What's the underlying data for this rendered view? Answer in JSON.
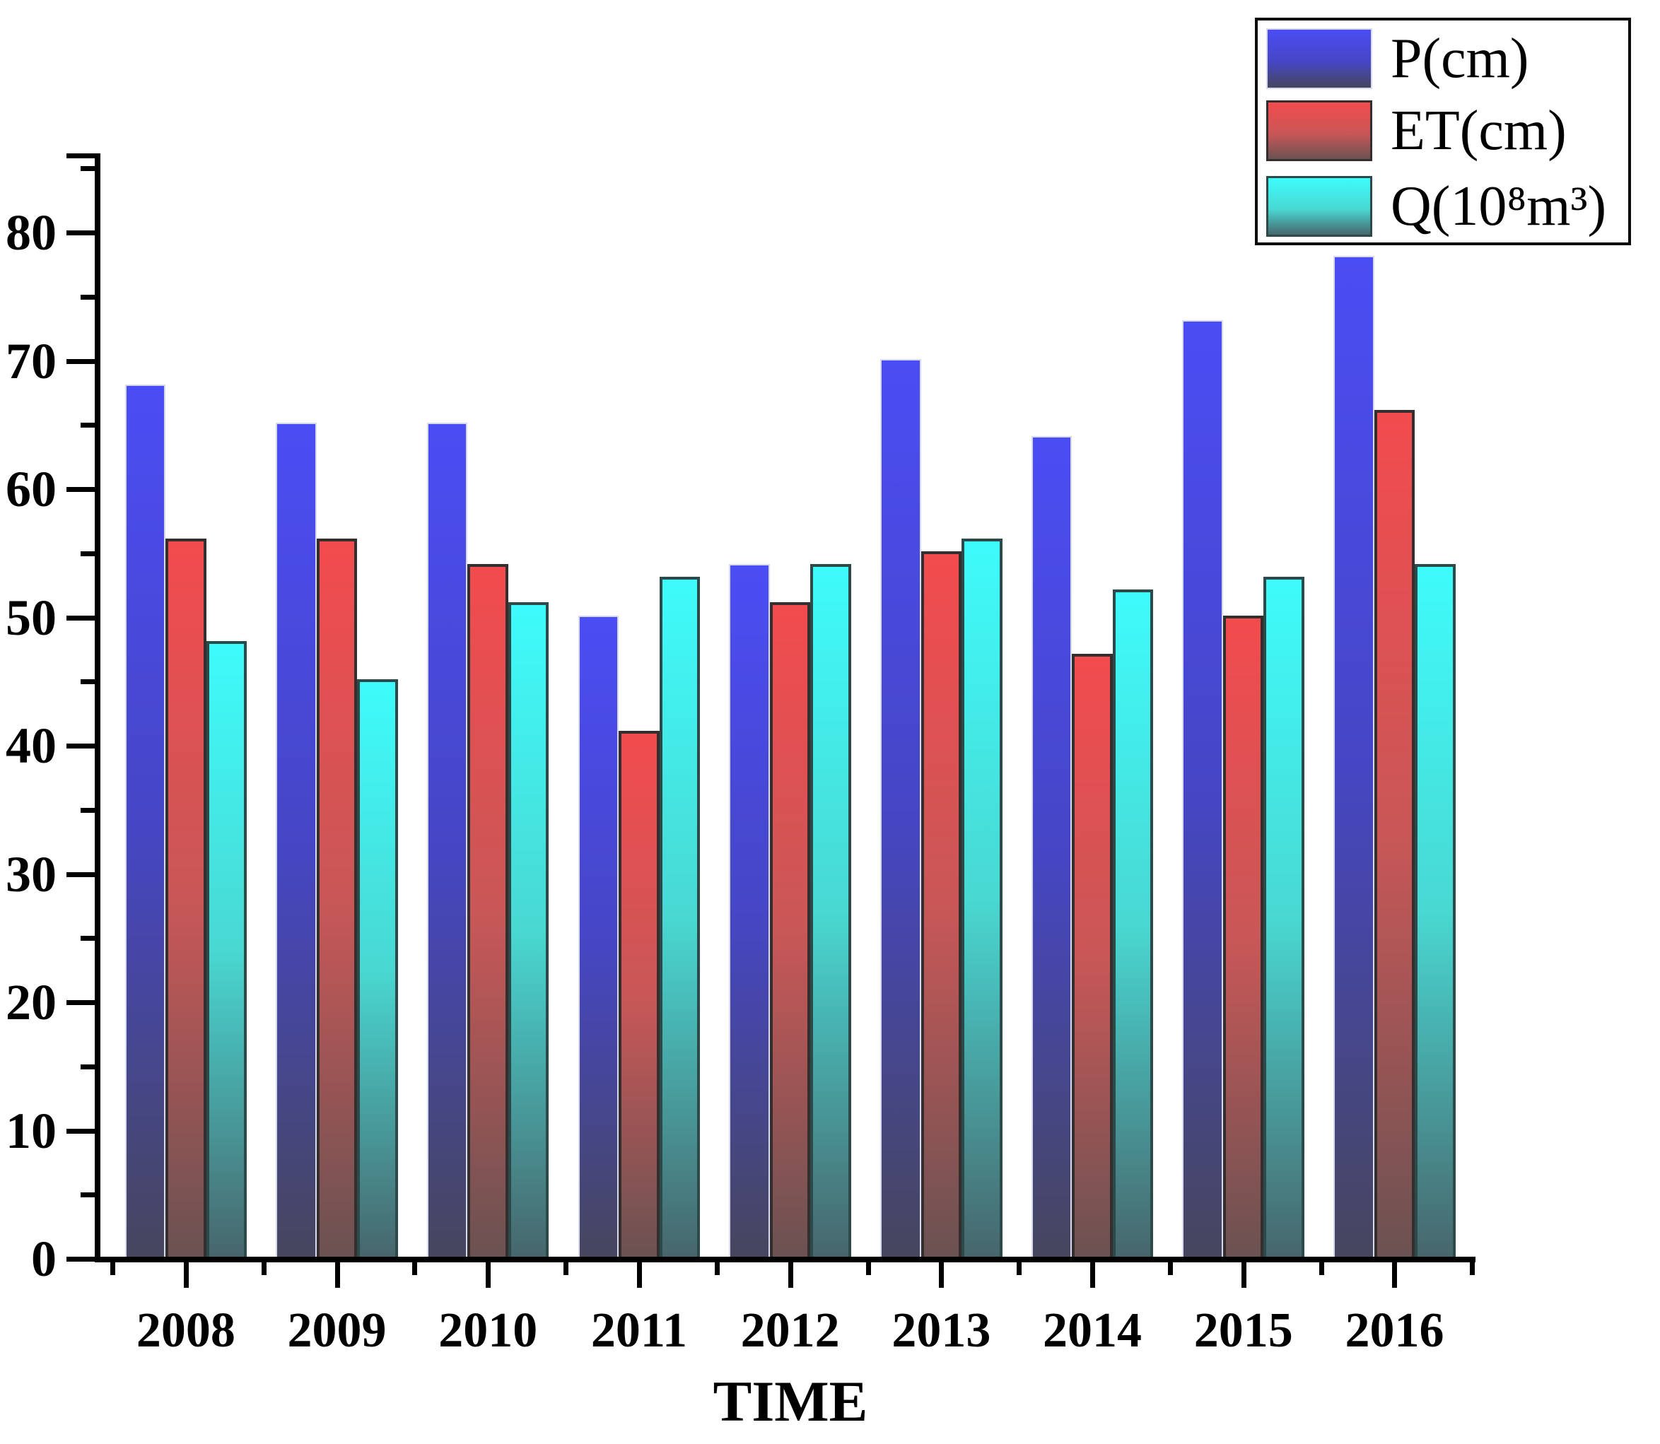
{
  "chart_data": {
    "type": "bar",
    "title": "",
    "xlabel": "TIME",
    "ylabel": "",
    "categories": [
      "2008",
      "2009",
      "2010",
      "2011",
      "2012",
      "2013",
      "2014",
      "2015",
      "2016"
    ],
    "series": [
      {
        "name": "P(cm)",
        "values": [
          68,
          65,
          65,
          50,
          54,
          70,
          64,
          73,
          78
        ],
        "color_top": "#4b4df4",
        "color_mid": "#4646c6",
        "color_bottom": "#46465e",
        "border_color": "#d8daf0"
      },
      {
        "name": "ET(cm)",
        "values": [
          56,
          56,
          54,
          41,
          51,
          55,
          47,
          50,
          66
        ],
        "color_top": "#f24b4e",
        "color_mid": "#c95757",
        "color_bottom": "#6b5252",
        "border_color": "#342e2e"
      },
      {
        "name": "Q(10⁸m³)",
        "values": [
          48,
          45,
          51,
          53,
          54,
          56,
          52,
          53,
          54
        ],
        "color_top": "#3efbfb",
        "color_mid": "#49d8d2",
        "color_bottom": "#47666c",
        "border_color": "#2c4a4a"
      }
    ],
    "ylim": [
      0,
      86
    ],
    "y_major_step": 10,
    "y_minor_step": 5,
    "y_major_max": 80,
    "y_tick_labels": [
      "0",
      "10",
      "20",
      "30",
      "40",
      "50",
      "60",
      "70",
      "80"
    ],
    "grid": false,
    "legend_position": "top-right"
  },
  "legend": {
    "items": [
      {
        "label": "P(cm)"
      },
      {
        "label": "ET(cm)"
      },
      {
        "label": "Q(10⁸m³)"
      }
    ]
  },
  "axis": {
    "x_title": "TIME"
  }
}
